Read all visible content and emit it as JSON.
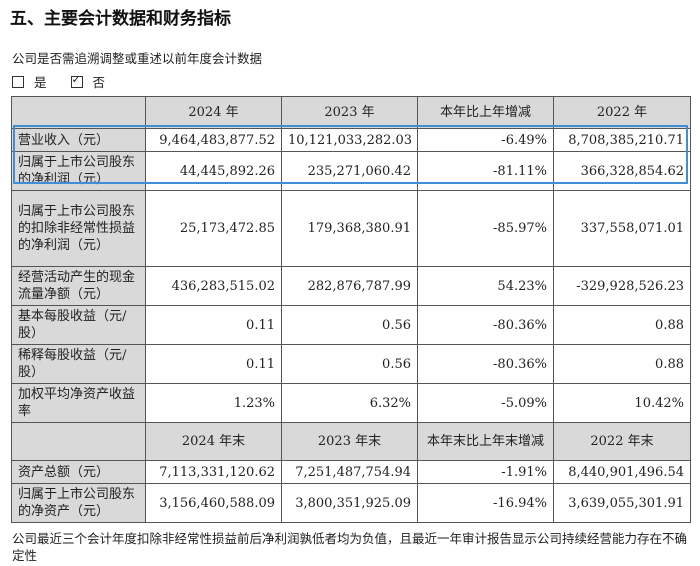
{
  "title": "五、主要会计数据和财务指标",
  "question": "公司是否需追溯调整或重述以前年度会计数据",
  "choices": [
    {
      "label": "是",
      "checked": false
    },
    {
      "label": "否",
      "checked": true
    }
  ],
  "table": {
    "header1": [
      "",
      "2024 年",
      "2023 年",
      "本年比上年增减",
      "2022 年"
    ],
    "rows1": [
      {
        "label": "营业收入（元）",
        "cells": [
          "9,464,483,877.52",
          "10,121,033,282.03",
          "-6.49%",
          "8,708,385,210.71"
        ]
      },
      {
        "label": "归属于上市公司股东的净利润（元）",
        "cells": [
          "44,445,892.26",
          "235,271,060.42",
          "-81.11%",
          "366,328,854.62"
        ]
      },
      {
        "label": "归属于上市公司股东的扣除非经常性损益的净利润（元）",
        "cells": [
          "25,173,472.85",
          "179,368,380.91",
          "-85.97%",
          "337,558,071.01"
        ]
      },
      {
        "label": "经营活动产生的现金流量净额（元）",
        "cells": [
          "436,283,515.02",
          "282,876,787.99",
          "54.23%",
          "-329,928,526.23"
        ]
      },
      {
        "label": "基本每股收益（元/股）",
        "cells": [
          "0.11",
          "0.56",
          "-80.36%",
          "0.88"
        ]
      },
      {
        "label": "稀释每股收益（元/股）",
        "cells": [
          "0.11",
          "0.56",
          "-80.36%",
          "0.88"
        ]
      },
      {
        "label": "加权平均净资产收益率",
        "cells": [
          "1.23%",
          "6.32%",
          "-5.09%",
          "10.42%"
        ]
      }
    ],
    "header2": [
      "",
      "2024 年末",
      "2023 年末",
      "本年末比上年末增减",
      "2022 年末"
    ],
    "rows2": [
      {
        "label": "资产总额（元）",
        "cells": [
          "7,113,331,120.62",
          "7,251,487,754.94",
          "-1.91%",
          "8,440,901,496.54"
        ]
      },
      {
        "label": "归属于上市公司股东的净资产（元）",
        "cells": [
          "3,156,460,588.09",
          "3,800,351,925.09",
          "-16.94%",
          "3,639,055,301.91"
        ]
      }
    ]
  },
  "footnote": "公司最近三个会计年度扣除非经常性损益前后净利润孰低者均为负值，且最近一年审计报告显示公司持续经营能力存在不确定性"
}
